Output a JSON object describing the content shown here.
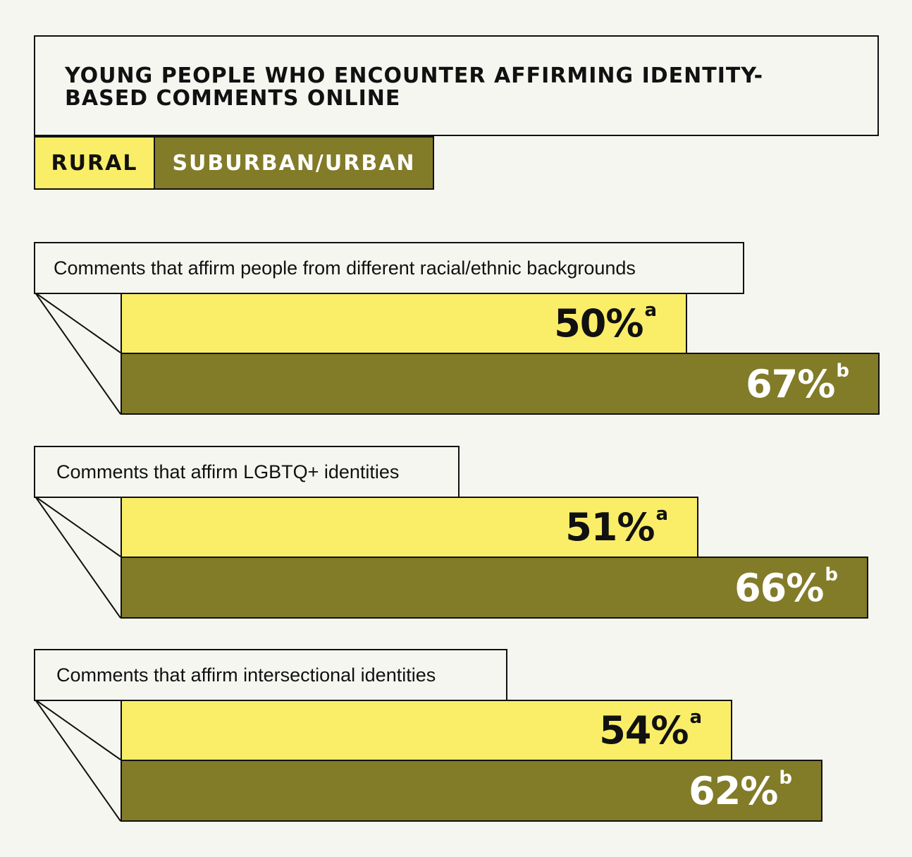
{
  "chart_data": {
    "type": "bar",
    "title": "YOUNG PEOPLE WHO ENCOUNTER AFFIRMING IDENTITY-BASED COMMENTS ONLINE",
    "legend": [
      "RURAL",
      "SUBURBAN/URBAN"
    ],
    "categories": [
      "Comments that affirm people from different racial/ethnic backgrounds",
      "Comments that affirm LGBTQ+ identities",
      "Comments that affirm intersectional identities"
    ],
    "series": [
      {
        "name": "RURAL",
        "values": [
          50,
          51,
          54
        ],
        "labels": [
          "50%",
          "51%",
          "54%"
        ],
        "superscripts": [
          "a",
          "a",
          "a"
        ],
        "color": "#faee68"
      },
      {
        "name": "SUBURBAN/URBAN",
        "values": [
          67,
          66,
          62
        ],
        "labels": [
          "67%",
          "66%",
          "62%"
        ],
        "superscripts": [
          "b",
          "b",
          "b"
        ],
        "color": "#827b28"
      }
    ],
    "orientation": "horizontal",
    "grid": false
  }
}
